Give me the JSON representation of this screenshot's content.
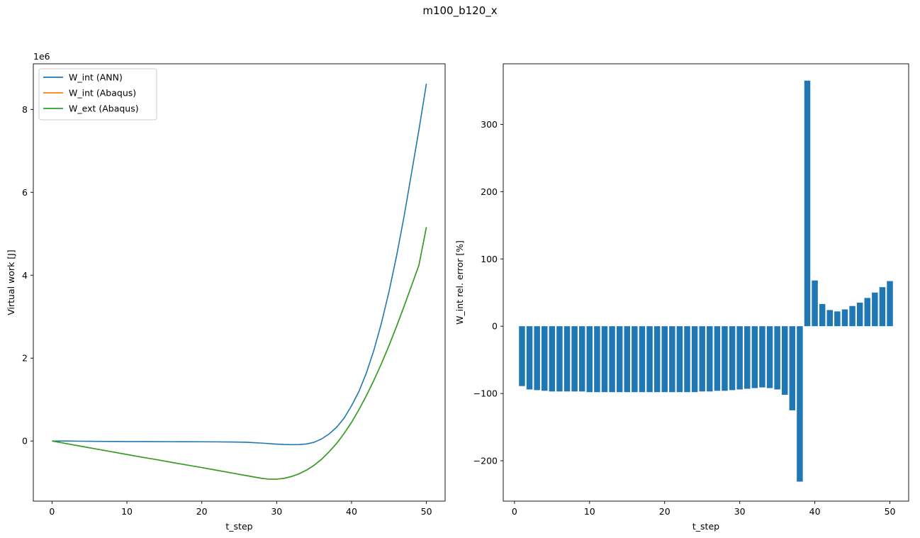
{
  "figure": {
    "title": "m100_b120_x"
  },
  "chart_data": [
    {
      "type": "line",
      "xlabel": "t_step",
      "ylabel": "Virtual work [J]",
      "offset_label": "1e6",
      "xlim": [
        -2.5,
        52.5
      ],
      "ylim": [
        -1.45,
        9.1
      ],
      "xticks": [
        0,
        10,
        20,
        30,
        40,
        50
      ],
      "yticks": [
        0,
        2,
        4,
        6,
        8
      ],
      "legend_position": "top-left",
      "x": [
        0,
        2,
        4,
        6,
        8,
        10,
        12,
        14,
        16,
        18,
        20,
        22,
        24,
        26,
        28,
        29,
        30,
        31,
        32,
        33,
        34,
        35,
        36,
        37,
        38,
        39,
        40,
        41,
        42,
        43,
        44,
        45,
        46,
        47,
        48,
        49,
        50
      ],
      "series": [
        {
          "name": "W_int (ANN)",
          "color": "#1f77b4",
          "values": [
            0,
            0,
            -0.005,
            -0.008,
            -0.01,
            -0.012,
            -0.013,
            -0.015,
            -0.016,
            -0.017,
            -0.018,
            -0.02,
            -0.023,
            -0.03,
            -0.05,
            -0.062,
            -0.074,
            -0.084,
            -0.088,
            -0.085,
            -0.07,
            -0.03,
            0.05,
            0.17,
            0.33,
            0.55,
            0.85,
            1.2,
            1.65,
            2.2,
            2.85,
            3.6,
            4.45,
            5.4,
            6.45,
            7.5,
            8.62
          ]
        },
        {
          "name": "W_int (Abaqus)",
          "color": "#ff7f0e",
          "values": [
            0,
            -0.065,
            -0.13,
            -0.195,
            -0.26,
            -0.325,
            -0.39,
            -0.45,
            -0.515,
            -0.578,
            -0.64,
            -0.705,
            -0.77,
            -0.835,
            -0.9,
            -0.92,
            -0.92,
            -0.9,
            -0.855,
            -0.79,
            -0.7,
            -0.585,
            -0.44,
            -0.26,
            -0.06,
            0.18,
            0.45,
            0.76,
            1.1,
            1.47,
            1.87,
            2.3,
            2.76,
            3.24,
            3.74,
            4.24,
            5.16
          ]
        },
        {
          "name": "W_ext (Abaqus)",
          "color": "#2ca02c",
          "values": [
            0,
            -0.065,
            -0.13,
            -0.195,
            -0.26,
            -0.325,
            -0.39,
            -0.45,
            -0.515,
            -0.578,
            -0.64,
            -0.705,
            -0.77,
            -0.835,
            -0.9,
            -0.92,
            -0.92,
            -0.9,
            -0.855,
            -0.79,
            -0.7,
            -0.585,
            -0.44,
            -0.26,
            -0.06,
            0.18,
            0.45,
            0.76,
            1.1,
            1.47,
            1.87,
            2.3,
            2.76,
            3.24,
            3.74,
            4.24,
            5.16
          ]
        }
      ]
    },
    {
      "type": "bar",
      "xlabel": "t_step",
      "ylabel": "W_int rel. error [%]",
      "xlim": [
        -1.5,
        52.5
      ],
      "ylim": [
        -260,
        390
      ],
      "xticks": [
        0,
        10,
        20,
        30,
        40,
        50
      ],
      "yticks": [
        -200,
        -100,
        0,
        100,
        200,
        300
      ],
      "color": "#1f77b4",
      "x": [
        1,
        2,
        3,
        4,
        5,
        6,
        7,
        8,
        9,
        10,
        11,
        12,
        13,
        14,
        15,
        16,
        17,
        18,
        19,
        20,
        21,
        22,
        23,
        24,
        25,
        26,
        27,
        28,
        29,
        30,
        31,
        32,
        33,
        34,
        35,
        36,
        37,
        38,
        39,
        40,
        41,
        42,
        43,
        44,
        45,
        46,
        47,
        48,
        49,
        50
      ],
      "values": [
        -89,
        -94,
        -95,
        -96,
        -97,
        -97,
        -97,
        -97,
        -97,
        -98,
        -98,
        -98,
        -98,
        -98,
        -98,
        -98,
        -98,
        -98,
        -98,
        -98,
        -98,
        -98,
        -98,
        -98,
        -97,
        -97,
        -96,
        -96,
        -95,
        -94,
        -93,
        -92,
        -91,
        -92,
        -94,
        -102,
        -125,
        -231,
        365,
        68,
        33,
        24,
        22,
        25,
        30,
        35,
        42,
        50,
        58,
        67
      ]
    }
  ]
}
